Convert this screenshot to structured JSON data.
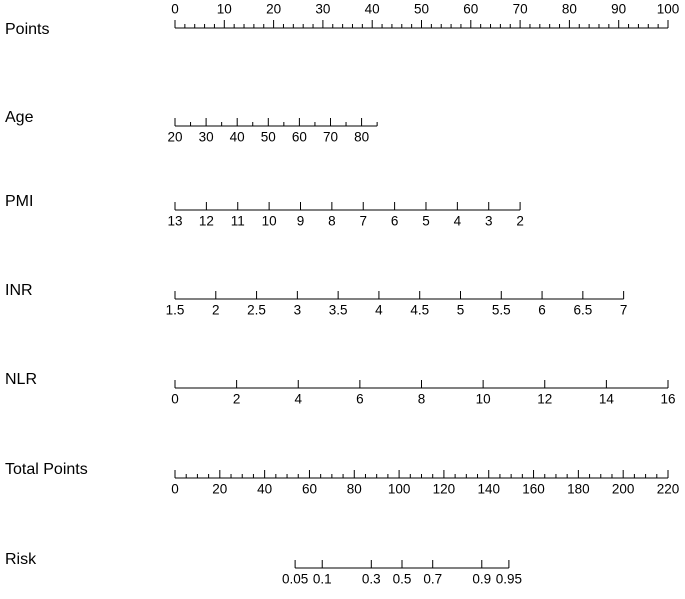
{
  "chart_data": {
    "type": "nomogram",
    "scales": [
      {
        "name": "Points",
        "label_side": "above",
        "lim": [
          0,
          100
        ],
        "points_lim": [
          0,
          100
        ],
        "ticks": [
          0,
          10,
          20,
          30,
          40,
          50,
          60,
          70,
          80,
          90,
          100
        ],
        "minor_ticks": [
          2,
          4,
          6,
          8,
          12,
          14,
          16,
          18,
          22,
          24,
          26,
          28,
          32,
          34,
          36,
          38,
          42,
          44,
          46,
          48,
          52,
          54,
          56,
          58,
          62,
          64,
          66,
          68,
          72,
          74,
          76,
          78,
          82,
          84,
          86,
          88,
          92,
          94,
          96,
          98
        ]
      },
      {
        "name": "Age",
        "label_side": "below",
        "lim": [
          20,
          85
        ],
        "points_lim": [
          0,
          41
        ],
        "ticks": [
          20,
          30,
          40,
          50,
          60,
          70,
          80
        ],
        "minor_ticks": [
          25,
          35,
          45,
          55,
          65,
          75,
          85
        ]
      },
      {
        "name": "PMI",
        "label_side": "below",
        "lim": [
          13,
          2
        ],
        "points_lim": [
          0,
          70
        ],
        "ticks": [
          13,
          12,
          11,
          10,
          9,
          8,
          7,
          6,
          5,
          4,
          3,
          2
        ],
        "minor_ticks": []
      },
      {
        "name": "INR",
        "label_side": "below",
        "lim": [
          1.5,
          7
        ],
        "points_lim": [
          0,
          91
        ],
        "ticks": [
          1.5,
          2,
          2.5,
          3,
          3.5,
          4,
          4.5,
          5,
          5.5,
          6,
          6.5,
          7
        ],
        "minor_ticks": []
      },
      {
        "name": "NLR",
        "label_side": "below",
        "lim": [
          0,
          16
        ],
        "points_lim": [
          0,
          100
        ],
        "ticks": [
          0,
          2,
          4,
          6,
          8,
          10,
          12,
          14,
          16
        ],
        "minor_ticks": []
      },
      {
        "name": "Total Points",
        "label_side": "below",
        "lim": [
          0,
          220
        ],
        "points_lim": [
          0,
          100
        ],
        "ticks": [
          0,
          20,
          40,
          60,
          80,
          100,
          120,
          140,
          160,
          180,
          200,
          220
        ],
        "minor_ticks": [
          5,
          10,
          15,
          25,
          30,
          35,
          45,
          50,
          55,
          65,
          70,
          75,
          85,
          90,
          95,
          105,
          110,
          115,
          125,
          130,
          135,
          145,
          150,
          155,
          165,
          170,
          175,
          185,
          190,
          195,
          205,
          210,
          215
        ]
      },
      {
        "name": "Risk",
        "label_side": "below",
        "ticks": [
          0.05,
          0.1,
          0.3,
          0.5,
          0.7,
          0.9,
          0.95
        ],
        "tick_total_points": [
          53.6,
          65.7,
          87.6,
          101.3,
          115,
          136.9,
          149
        ]
      }
    ]
  }
}
